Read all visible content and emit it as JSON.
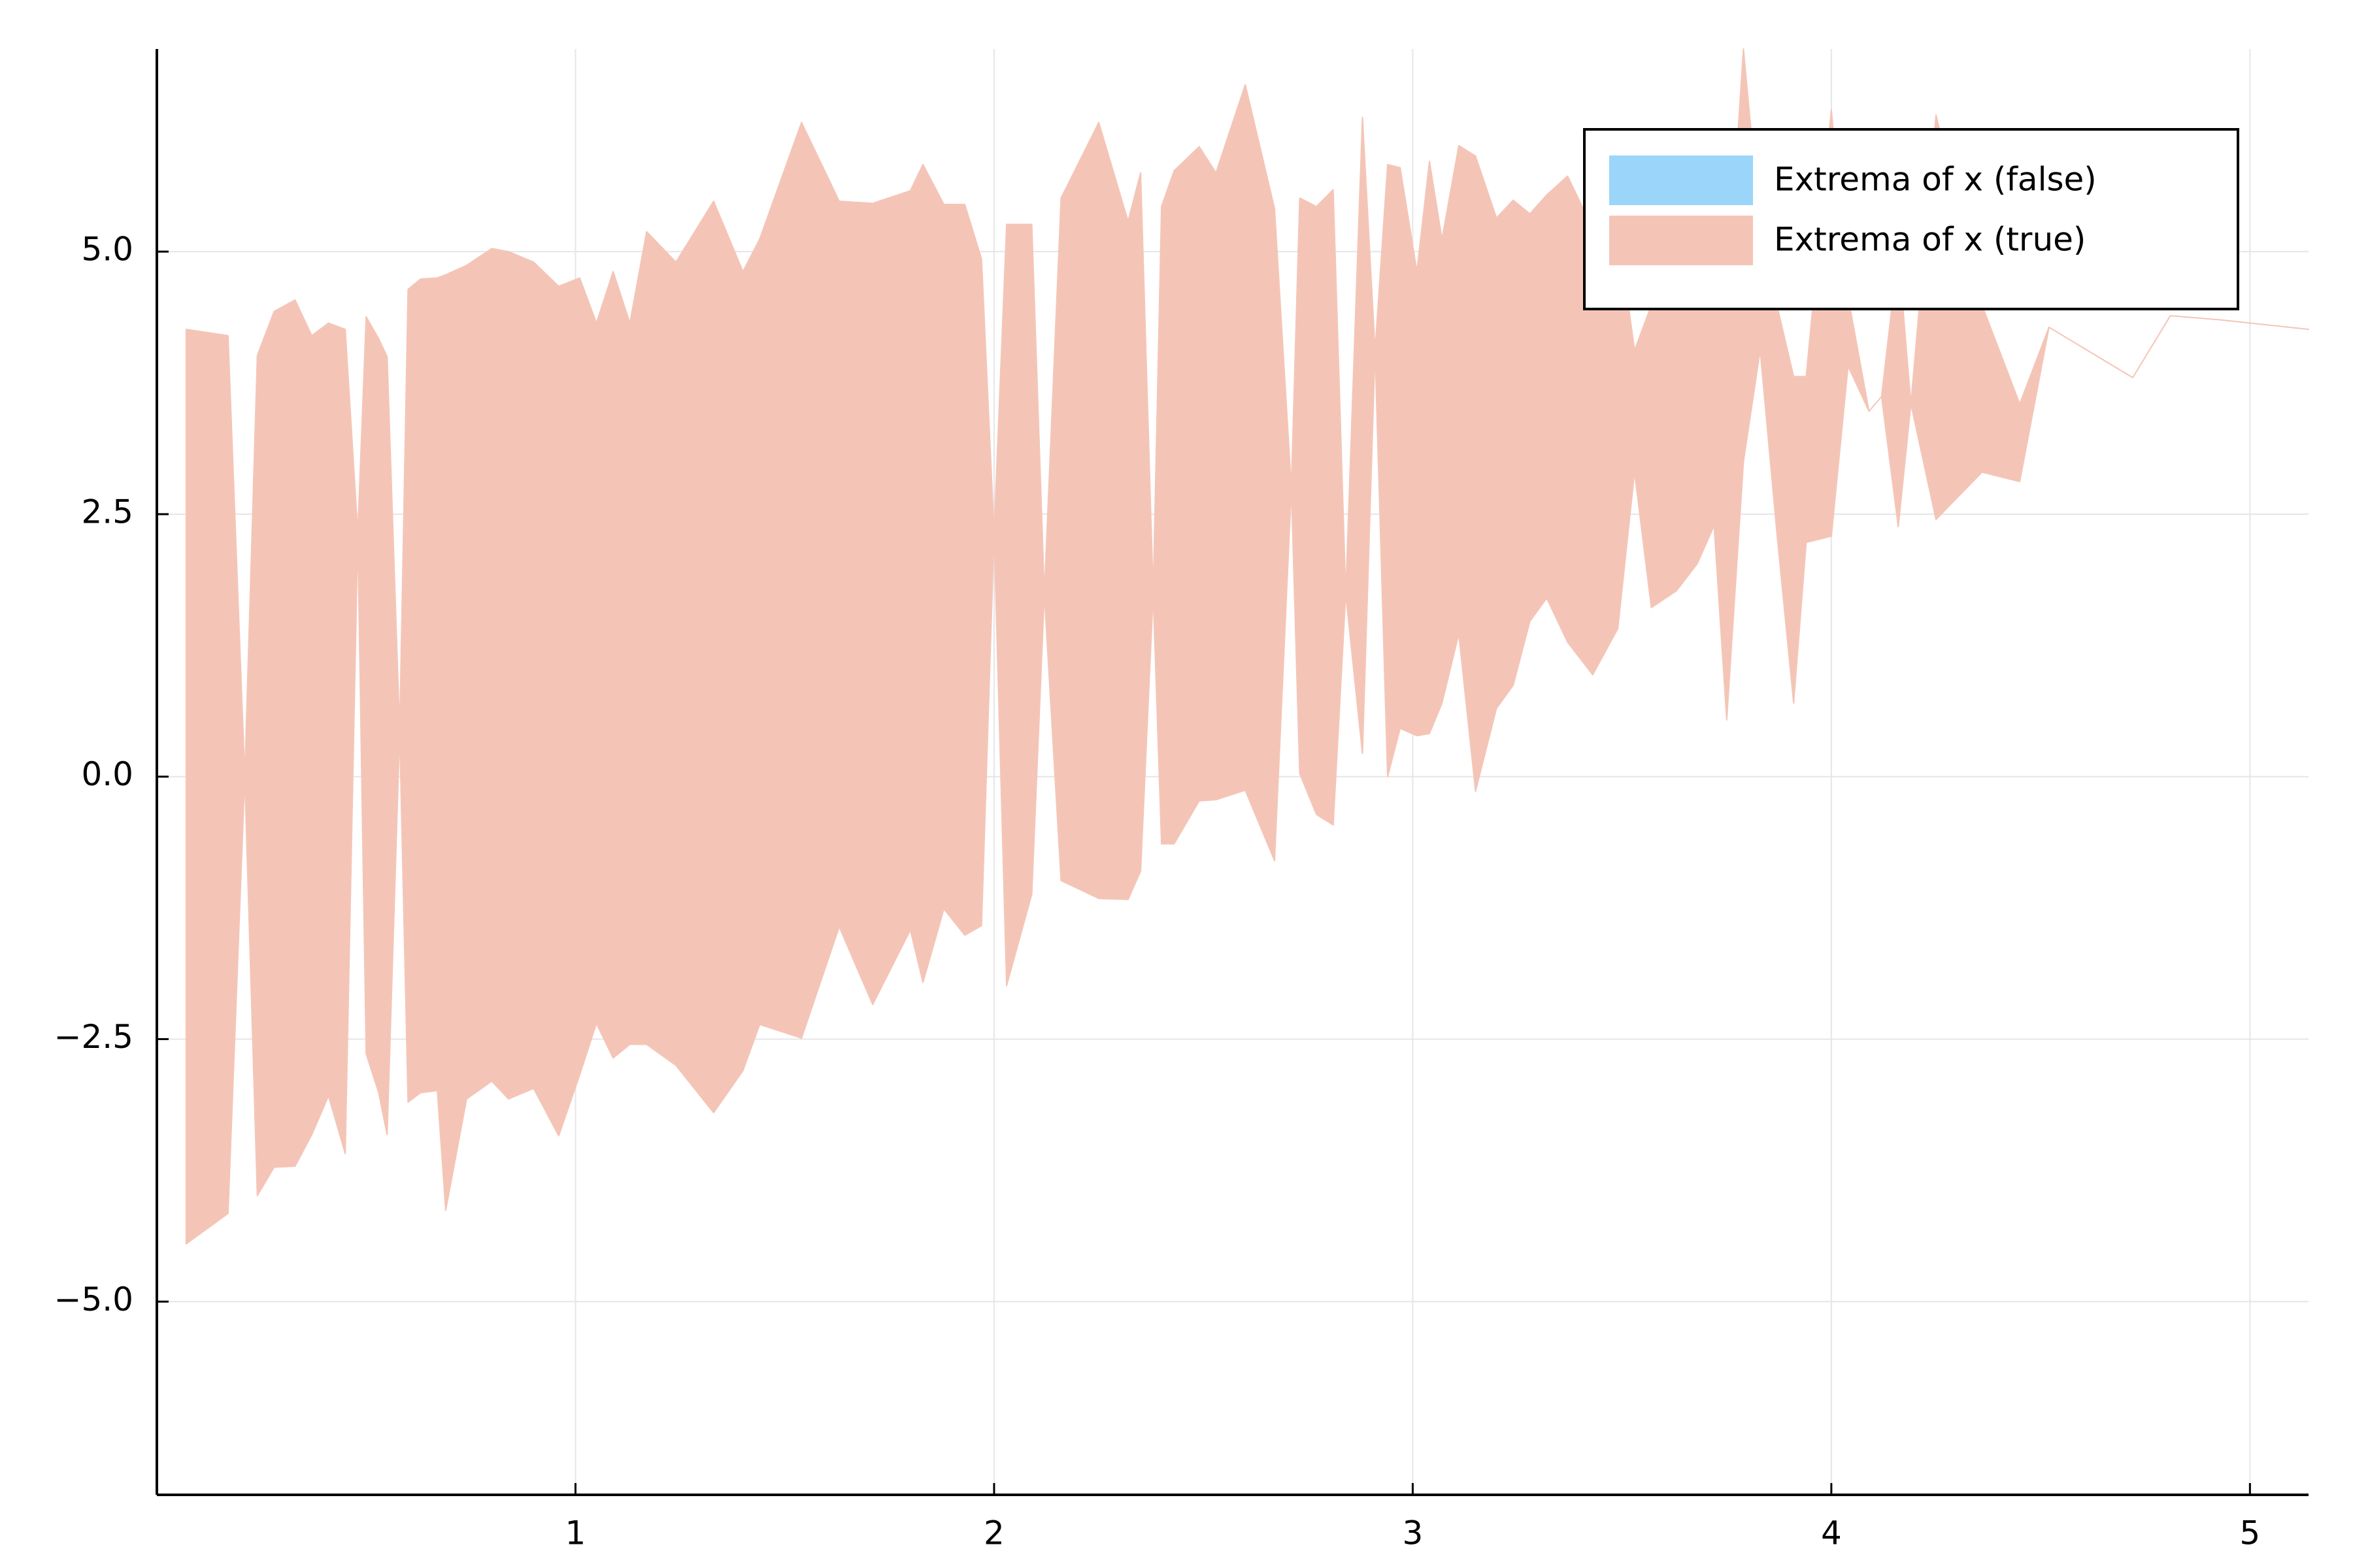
{
  "chart_data": {
    "type": "band",
    "xlim": [
      0,
      5.14
    ],
    "ylim": [
      -6.84,
      6.93
    ],
    "xticks": [
      1,
      2,
      3,
      4,
      5
    ],
    "yticks": [
      {
        "value": -5,
        "label": "−5.0"
      },
      {
        "value": -2.5,
        "label": "−2.5"
      },
      {
        "value": 0,
        "label": "0.0"
      },
      {
        "value": 2.5,
        "label": "2.5"
      },
      {
        "value": 5,
        "label": "5.0"
      }
    ],
    "grid": true,
    "legend": "top-right",
    "series": [
      {
        "name": "Extrema of x (false)",
        "color": "#9bd6fa",
        "x": [],
        "upper": [],
        "lower": []
      },
      {
        "name": "Extrema of x (true)",
        "color": "#f4c5b7",
        "x": [
          0.07,
          0.17,
          0.21,
          0.24,
          0.28,
          0.33,
          0.37,
          0.41,
          0.45,
          0.48,
          0.5,
          0.53,
          0.55,
          0.58,
          0.6,
          0.63,
          0.67,
          0.69,
          0.74,
          0.8,
          0.84,
          0.9,
          0.96,
          1.01,
          1.05,
          1.09,
          1.13,
          1.17,
          1.24,
          1.33,
          1.4,
          1.44,
          1.54,
          1.63,
          1.71,
          1.8,
          1.83,
          1.88,
          1.93,
          1.97,
          2.0,
          2.03,
          2.09,
          2.12,
          2.16,
          2.25,
          2.32,
          2.35,
          2.38,
          2.4,
          2.43,
          2.49,
          2.53,
          2.6,
          2.67,
          2.71,
          2.73,
          2.77,
          2.81,
          2.84,
          2.88,
          2.91,
          2.94,
          2.97,
          3.01,
          3.04,
          3.07,
          3.11,
          3.15,
          3.2,
          3.24,
          3.28,
          3.32,
          3.37,
          3.43,
          3.49,
          3.53,
          3.57,
          3.63,
          3.68,
          3.72,
          3.75,
          3.79,
          3.83,
          3.87,
          3.91,
          3.94,
          4.0,
          4.04,
          4.09,
          4.12,
          4.16,
          4.19,
          4.25,
          4.36,
          4.45,
          4.52,
          4.72,
          4.81,
          4.93,
          5.14
        ],
        "upper": [
          4.26,
          4.2,
          0,
          4.01,
          4.43,
          4.54,
          4.2,
          4.32,
          4.26,
          2.32,
          4.38,
          4.17,
          4.0,
          0.43,
          4.64,
          4.74,
          4.75,
          4.78,
          4.87,
          5.03,
          5.0,
          4.9,
          4.67,
          4.75,
          4.32,
          4.81,
          4.32,
          5.19,
          4.9,
          5.48,
          4.81,
          5.12,
          6.23,
          5.48,
          5.46,
          5.58,
          5.83,
          5.45,
          5.45,
          4.93,
          2.32,
          5.26,
          5.26,
          1.74,
          5.51,
          6.23,
          5.29,
          5.75,
          1.74,
          5.43,
          5.77,
          6.0,
          5.75,
          6.59,
          5.41,
          2.75,
          5.51,
          5.43,
          5.59,
          1.74,
          6.28,
          4.06,
          5.83,
          5.8,
          4.81,
          5.86,
          5.12,
          6.01,
          5.91,
          5.32,
          5.49,
          5.36,
          5.54,
          5.72,
          5.22,
          5.22,
          4.06,
          4.49,
          4.49,
          4.57,
          4.49,
          4.49,
          6.93,
          5.22,
          4.49,
          3.81,
          3.81,
          6.35,
          4.57,
          3.48,
          3.62,
          5.0,
          3.55,
          6.3,
          4.49,
          3.55,
          4.28,
          3.8,
          4.39,
          4.35,
          4.26
        ],
        "lower": [
          -4.45,
          -4.16,
          0,
          -3.99,
          -3.72,
          -3.71,
          -3.41,
          -3.04,
          -3.59,
          2.32,
          -2.64,
          -3.01,
          -3.41,
          0.43,
          -3.1,
          -3.01,
          -2.99,
          -4.13,
          -3.07,
          -2.9,
          -3.07,
          -2.97,
          -3.42,
          -2.84,
          -2.35,
          -2.68,
          -2.55,
          -2.55,
          -2.75,
          -3.2,
          -2.8,
          -2.36,
          -2.49,
          -1.43,
          -2.17,
          -1.46,
          -1.96,
          -1.26,
          -1.51,
          -1.42,
          2.32,
          -1.99,
          -1.12,
          1.74,
          -0.99,
          -1.16,
          -1.17,
          -0.9,
          1.74,
          -0.64,
          -0.64,
          -0.23,
          -0.22,
          -0.13,
          -0.8,
          2.75,
          0.03,
          -0.36,
          -0.46,
          1.74,
          0.22,
          4.06,
          0.0,
          0.46,
          0.39,
          0.41,
          0.7,
          1.36,
          -0.14,
          0.65,
          0.87,
          1.48,
          1.7,
          1.28,
          0.97,
          1.41,
          2.9,
          1.61,
          1.77,
          2.03,
          2.39,
          0.54,
          3.0,
          4.06,
          2.32,
          0.7,
          2.23,
          2.29,
          3.91,
          3.48,
          3.62,
          2.38,
          3.55,
          2.45,
          2.9,
          2.81,
          4.28,
          3.8,
          4.39,
          4.35,
          4.26
        ]
      }
    ]
  }
}
